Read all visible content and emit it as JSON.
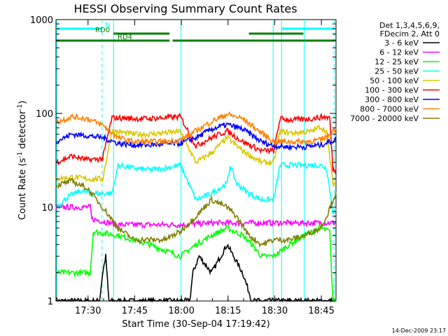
{
  "chart_data": {
    "type": "line",
    "title": "HESSI Observing Summary Count Rates",
    "xlabel": "Start Time (30-Sep-04 17:19:42)",
    "ylabel_main": "Count Rate (s",
    "ylabel_sup1": "-1",
    "ylabel_mid": " detector",
    "ylabel_sup2": "-1",
    "ylabel_end": ")",
    "y_scale": "log",
    "ylim": [
      1,
      1000
    ],
    "xlim_minutes": [
      0,
      90
    ],
    "x_ticks": [
      {
        "t": 10.3,
        "label": "17:30"
      },
      {
        "t": 25.3,
        "label": "17:45"
      },
      {
        "t": 40.3,
        "label": "18:00"
      },
      {
        "t": 55.3,
        "label": "18:15"
      },
      {
        "t": 70.3,
        "label": "18:30"
      },
      {
        "t": 85.3,
        "label": "18:45"
      }
    ],
    "y_ticks": [
      {
        "v": 1,
        "label": "1"
      },
      {
        "v": 10,
        "label": "10"
      },
      {
        "v": 100,
        "label": "100"
      },
      {
        "v": 1000,
        "label": "1000"
      }
    ],
    "legend_header": [
      "Det 1,3,4,5,6,9,",
      "FDecim 2, Att 0"
    ],
    "series": [
      {
        "name": "3 - 6 keV",
        "color": "#000000",
        "points": [
          [
            0,
            1
          ],
          [
            14,
            1
          ],
          [
            15,
            2
          ],
          [
            16,
            3
          ],
          [
            17,
            1
          ],
          [
            40,
            1
          ],
          [
            40.5,
            1
          ],
          [
            43,
            1
          ],
          [
            44,
            2
          ],
          [
            46,
            3
          ],
          [
            50,
            2
          ],
          [
            55,
            4
          ],
          [
            60,
            2
          ],
          [
            63,
            1
          ],
          [
            66,
            1
          ],
          [
            67,
            1
          ],
          [
            90,
            1
          ]
        ]
      },
      {
        "name": "6 - 12 keV",
        "color": "#ff00ff",
        "points": [
          [
            0,
            10
          ],
          [
            11,
            10
          ],
          [
            11.5,
            7.5
          ],
          [
            20,
            6.5
          ],
          [
            30,
            6.5
          ],
          [
            40,
            6.5
          ],
          [
            50,
            6.8
          ],
          [
            60,
            6.8
          ],
          [
            70,
            6.8
          ],
          [
            80,
            6.8
          ],
          [
            90,
            6.8
          ]
        ]
      },
      {
        "name": "12 - 25 keV",
        "color": "#00ff00",
        "points": [
          [
            0,
            2
          ],
          [
            11,
            2
          ],
          [
            12,
            5.5
          ],
          [
            20,
            5
          ],
          [
            30,
            4
          ],
          [
            40,
            3
          ],
          [
            45,
            4
          ],
          [
            50,
            5
          ],
          [
            55,
            6
          ],
          [
            60,
            5
          ],
          [
            63,
            4
          ],
          [
            66,
            3
          ],
          [
            70,
            3
          ],
          [
            75,
            4
          ],
          [
            80,
            5
          ],
          [
            85,
            6
          ],
          [
            88,
            5.5
          ],
          [
            89,
            1
          ],
          [
            90,
            1
          ]
        ]
      },
      {
        "name": "25 - 50 keV",
        "color": "#00ffff",
        "points": [
          [
            0,
            10
          ],
          [
            4,
            13
          ],
          [
            8,
            15
          ],
          [
            11,
            14
          ],
          [
            15,
            14
          ],
          [
            18,
            14
          ],
          [
            20,
            28
          ],
          [
            25,
            26
          ],
          [
            30,
            25
          ],
          [
            35,
            26
          ],
          [
            40,
            28
          ],
          [
            45,
            12
          ],
          [
            50,
            14
          ],
          [
            55,
            18
          ],
          [
            56,
            28
          ],
          [
            58,
            18
          ],
          [
            62,
            14
          ],
          [
            66,
            12
          ],
          [
            70,
            12
          ],
          [
            72,
            28
          ],
          [
            76,
            28
          ],
          [
            80,
            28
          ],
          [
            85,
            28
          ],
          [
            87,
            26
          ],
          [
            89,
            9
          ],
          [
            90,
            9
          ]
        ]
      },
      {
        "name": "50 - 100 keV",
        "color": "#d8c800",
        "points": [
          [
            0,
            20
          ],
          [
            5,
            21
          ],
          [
            10,
            20
          ],
          [
            11,
            20
          ],
          [
            15,
            20
          ],
          [
            18,
            65
          ],
          [
            25,
            60
          ],
          [
            30,
            60
          ],
          [
            35,
            62
          ],
          [
            40,
            64
          ],
          [
            45,
            30
          ],
          [
            50,
            38
          ],
          [
            55,
            55
          ],
          [
            60,
            40
          ],
          [
            66,
            30
          ],
          [
            70,
            30
          ],
          [
            72,
            64
          ],
          [
            76,
            62
          ],
          [
            82,
            64
          ],
          [
            85,
            72
          ],
          [
            87,
            64
          ],
          [
            89,
            18
          ],
          [
            90,
            18
          ]
        ]
      },
      {
        "name": "100 - 300 keV",
        "color": "#ff0000",
        "points": [
          [
            0,
            30
          ],
          [
            5,
            35
          ],
          [
            10,
            32
          ],
          [
            11,
            32
          ],
          [
            15,
            33
          ],
          [
            18,
            90
          ],
          [
            25,
            88
          ],
          [
            30,
            88
          ],
          [
            35,
            90
          ],
          [
            40,
            92
          ],
          [
            45,
            45
          ],
          [
            50,
            55
          ],
          [
            55,
            65
          ],
          [
            60,
            50
          ],
          [
            66,
            40
          ],
          [
            70,
            40
          ],
          [
            72,
            88
          ],
          [
            76,
            85
          ],
          [
            82,
            88
          ],
          [
            86,
            92
          ],
          [
            88,
            90
          ],
          [
            89,
            25
          ],
          [
            90,
            25
          ]
        ]
      },
      {
        "name": "300 - 800 keV",
        "color": "#0000ff",
        "points": [
          [
            0,
            50
          ],
          [
            5,
            60
          ],
          [
            10,
            58
          ],
          [
            15,
            55
          ],
          [
            20,
            48
          ],
          [
            25,
            46
          ],
          [
            30,
            46
          ],
          [
            35,
            47
          ],
          [
            40,
            48
          ],
          [
            45,
            55
          ],
          [
            50,
            68
          ],
          [
            55,
            76
          ],
          [
            60,
            68
          ],
          [
            66,
            50
          ],
          [
            70,
            45
          ],
          [
            75,
            44
          ],
          [
            80,
            44
          ],
          [
            85,
            46
          ],
          [
            88,
            50
          ],
          [
            90,
            52
          ]
        ]
      },
      {
        "name": "800 - 7000 keV",
        "color": "#ff8000",
        "points": [
          [
            0,
            80
          ],
          [
            5,
            92
          ],
          [
            10,
            88
          ],
          [
            15,
            75
          ],
          [
            20,
            55
          ],
          [
            25,
            50
          ],
          [
            30,
            50
          ],
          [
            35,
            50
          ],
          [
            40,
            52
          ],
          [
            45,
            65
          ],
          [
            50,
            82
          ],
          [
            55,
            98
          ],
          [
            60,
            88
          ],
          [
            66,
            62
          ],
          [
            70,
            50
          ],
          [
            75,
            50
          ],
          [
            80,
            50
          ],
          [
            85,
            52
          ],
          [
            88,
            60
          ],
          [
            90,
            70
          ]
        ]
      },
      {
        "name": "7000 - 20000 keV",
        "color": "#808000",
        "points": [
          [
            0,
            17
          ],
          [
            5,
            19
          ],
          [
            10,
            16
          ],
          [
            15,
            10
          ],
          [
            20,
            6
          ],
          [
            25,
            4.5
          ],
          [
            30,
            4.5
          ],
          [
            35,
            4.5
          ],
          [
            40,
            5.5
          ],
          [
            45,
            8
          ],
          [
            50,
            12
          ],
          [
            55,
            10
          ],
          [
            58,
            8
          ],
          [
            62,
            5
          ],
          [
            66,
            4
          ],
          [
            70,
            4.5
          ],
          [
            75,
            4.5
          ],
          [
            80,
            5
          ],
          [
            85,
            6
          ],
          [
            87,
            8
          ],
          [
            89,
            12
          ],
          [
            90,
            14
          ]
        ]
      }
    ],
    "vertical_lines": [
      {
        "t": 0.2,
        "color": "#00ffff",
        "style": "solid"
      },
      {
        "t": 14.8,
        "color": "#00ffff",
        "style": "dashed"
      },
      {
        "t": 18.5,
        "color": "#00ffff",
        "style": "solid"
      },
      {
        "t": 40.2,
        "color": "#00ffff",
        "style": "solid"
      },
      {
        "t": 69.8,
        "color": "#00ffff",
        "style": "solid"
      },
      {
        "t": 72.5,
        "color": "#00ffff",
        "style": "solid"
      },
      {
        "t": 79.8,
        "color": "#00ffff",
        "style": "solid"
      },
      {
        "t": 89.4,
        "color": "#00ffff",
        "style": "dashed"
      }
    ],
    "state_bars": [
      {
        "label": "N",
        "color": "#00ffff",
        "segments": [
          [
            0,
            14.8
          ],
          [
            72.5,
            89.4
          ]
        ],
        "level": 0
      },
      {
        "label": "RD0",
        "color": "#008000",
        "segments": [
          [
            18.5,
            36.5
          ],
          [
            62,
            79.5
          ]
        ],
        "level": 1
      },
      {
        "label": "RD4",
        "color": "#008000",
        "segments": [
          [
            0,
            36.5
          ],
          [
            37.5,
            62
          ],
          [
            62,
            89.4
          ],
          [
            89.6,
            90
          ]
        ],
        "level": 2
      }
    ],
    "footer": "14-Dec-2009 23:17"
  }
}
